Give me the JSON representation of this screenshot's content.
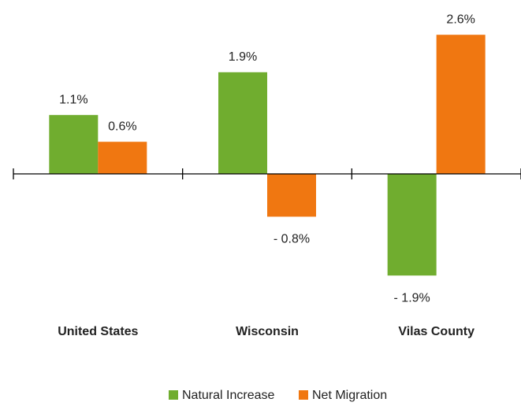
{
  "chart_data": {
    "type": "bar",
    "categories": [
      "United States",
      "Wisconsin",
      "Vilas County"
    ],
    "series": [
      {
        "name": "Natural Increase",
        "color": "#70ad2f",
        "values": [
          1.1,
          1.9,
          -1.9
        ],
        "value_labels": [
          "1.1%",
          "1.9%",
          "- 1.9%"
        ]
      },
      {
        "name": "Net Migration",
        "color": "#f07711",
        "values": [
          0.6,
          -0.8,
          2.6
        ],
        "value_labels": [
          "0.6%",
          "- 0.8%",
          "2.6%"
        ]
      }
    ],
    "ylim": [
      -2,
      3
    ],
    "legend": "bottom"
  }
}
